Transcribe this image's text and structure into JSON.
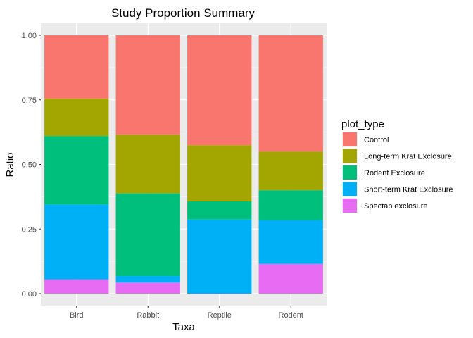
{
  "chart_data": {
    "type": "bar",
    "stacked": true,
    "title": "Study Proportion Summary",
    "xlabel": "Taxa",
    "ylabel": "Ratio",
    "categories": [
      "Bird",
      "Rabbit",
      "Reptile",
      "Rodent"
    ],
    "ylim": [
      0,
      1
    ],
    "yticks": [
      "0.00",
      "0.25",
      "0.50",
      "0.75",
      "1.00"
    ],
    "ytick_values": [
      0,
      0.25,
      0.5,
      0.75,
      1.0
    ],
    "grid": true,
    "legend_title": "plot_type",
    "legend_position": "right",
    "series": [
      {
        "name": "Spectab exclosure",
        "color": "#E76BF3",
        "values": [
          0.055,
          0.043,
          0.0,
          0.115
        ]
      },
      {
        "name": "Short-term Krat Exclosure",
        "color": "#00B0F6",
        "values": [
          0.29,
          0.025,
          0.287,
          0.17
        ]
      },
      {
        "name": "Rodent Exclosure",
        "color": "#00BF7D",
        "values": [
          0.265,
          0.32,
          0.07,
          0.115
        ]
      },
      {
        "name": "Long-term Krat Exclosure",
        "color": "#A3A500",
        "values": [
          0.145,
          0.226,
          0.217,
          0.15
        ]
      },
      {
        "name": "Control",
        "color": "#F8766D",
        "values": [
          0.245,
          0.386,
          0.426,
          0.45
        ]
      }
    ],
    "legend_order": [
      "Control",
      "Long-term Krat Exclosure",
      "Rodent Exclosure",
      "Short-term Krat Exclosure",
      "Spectab exclosure"
    ]
  }
}
